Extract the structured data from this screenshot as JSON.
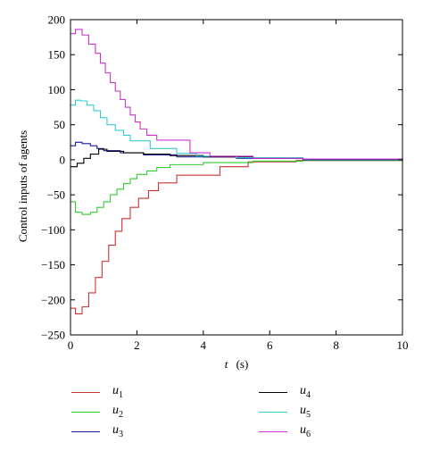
{
  "chart_data": {
    "type": "line",
    "title": "",
    "xlabel": {
      "var": "t",
      "unit": "(s)"
    },
    "ylabel": "Control inputs of agents",
    "xlim": [
      0,
      10
    ],
    "ylim": [
      -250,
      200
    ],
    "xticks": [
      0,
      2,
      4,
      6,
      8,
      10
    ],
    "yticks": [
      200,
      150,
      100,
      50,
      0,
      -50,
      -100,
      -150,
      -200,
      -250
    ],
    "grid": false,
    "legend_position": "bottom",
    "step": true,
    "series": [
      {
        "name": "u",
        "sub": "1",
        "color": "#cc3333",
        "x": [
          0,
          0.15,
          0.35,
          0.55,
          0.75,
          0.95,
          1.15,
          1.35,
          1.55,
          1.8,
          2.05,
          2.35,
          2.65,
          3.2,
          4.5,
          5.35,
          6.8,
          10
        ],
        "y": [
          -212,
          -220,
          -210,
          -190,
          -168,
          -145,
          -122,
          -102,
          -84,
          -68,
          -55,
          -44,
          -33,
          -22,
          -10,
          -3,
          -1,
          0
        ]
      },
      {
        "name": "u",
        "sub": "2",
        "color": "#33cc33",
        "x": [
          0,
          0.15,
          0.35,
          0.6,
          0.8,
          1.0,
          1.2,
          1.4,
          1.6,
          1.8,
          2.0,
          2.3,
          2.6,
          3.0,
          4.0,
          5.5,
          7.0,
          10
        ],
        "y": [
          -60,
          -75,
          -78,
          -75,
          -68,
          -60,
          -50,
          -42,
          -34,
          -27,
          -21,
          -16,
          -11,
          -7,
          -4,
          -2,
          -1,
          0
        ]
      },
      {
        "name": "u",
        "sub": "3",
        "color": "#1a1a99",
        "x": [
          0,
          0.15,
          0.35,
          0.6,
          0.8,
          1.0,
          1.5,
          2.2,
          3.2,
          5.0,
          7.0,
          10
        ],
        "y": [
          20,
          25,
          23,
          20,
          16,
          13,
          10,
          7,
          4,
          2,
          0,
          0
        ]
      },
      {
        "name": "u",
        "sub": "4",
        "color": "#000000",
        "x": [
          0,
          0.2,
          0.4,
          0.6,
          0.85,
          1.1,
          1.6,
          2.2,
          3.0,
          4.0,
          5.5,
          7.0,
          10
        ],
        "y": [
          -10,
          -5,
          2,
          8,
          15,
          12,
          10,
          8,
          6,
          4,
          2,
          1,
          0
        ]
      },
      {
        "name": "u",
        "sub": "5",
        "color": "#33cccc",
        "x": [
          0,
          0.15,
          0.3,
          0.5,
          0.7,
          0.9,
          1.1,
          1.35,
          1.6,
          1.8,
          2.4,
          3.2,
          3.8,
          5.0,
          7.0,
          10
        ],
        "y": [
          78,
          85,
          84,
          78,
          70,
          60,
          50,
          42,
          35,
          27,
          16,
          9,
          5,
          3,
          1,
          0
        ]
      },
      {
        "name": "u",
        "sub": "6",
        "color": "#cc33cc",
        "x": [
          0,
          0.15,
          0.35,
          0.55,
          0.75,
          0.9,
          1.05,
          1.2,
          1.35,
          1.5,
          1.65,
          1.8,
          1.95,
          2.1,
          2.3,
          2.6,
          3.6,
          4.2,
          5.5,
          7.0,
          10
        ],
        "y": [
          180,
          186,
          178,
          165,
          152,
          138,
          124,
          110,
          98,
          86,
          75,
          64,
          54,
          44,
          35,
          28,
          10,
          5,
          2,
          1,
          0
        ]
      }
    ]
  }
}
